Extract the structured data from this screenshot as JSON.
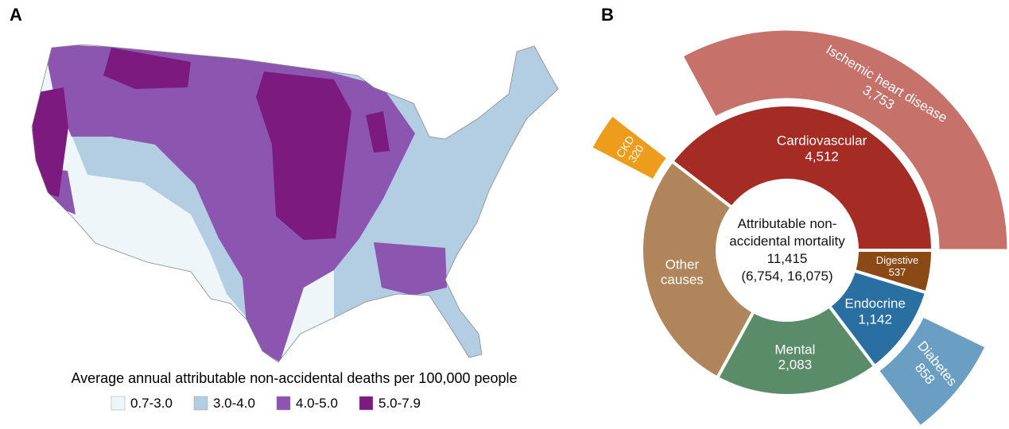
{
  "chart_data": [
    {
      "type": "map",
      "panel": "A",
      "title": "Average annual attributable non-accidental deaths per 100,000 people",
      "legend": [
        {
          "label": "0.7-3.0",
          "color": "#eef6fa"
        },
        {
          "label": "3.0-4.0",
          "color": "#b3cde3"
        },
        {
          "label": "4.0-5.0",
          "color": "#8c56b0"
        },
        {
          "label": "5.0-7.9",
          "color": "#7d1a7f"
        }
      ]
    },
    {
      "type": "sunburst",
      "panel": "B",
      "center": {
        "title": "Attributable non-accidental mortality",
        "value": 11415,
        "value_label": "11,415",
        "interval": "(6,754, 16,075)"
      },
      "inner": [
        {
          "name": "Cardiovascular",
          "value": 4512,
          "value_label": "4,512",
          "color": "#a52c24",
          "children": [
            {
              "name": "Ischemic heart disease",
              "value": 3753,
              "value_label": "3,753",
              "color": "#c6716a"
            }
          ]
        },
        {
          "name": "Other causes",
          "value": 3141,
          "color": "#b1855b",
          "children": [
            {
              "name": "CKD",
              "value": 320,
              "value_label": "320",
              "color": "#ee9c1c"
            }
          ]
        },
        {
          "name": "Mental",
          "value": 2083,
          "value_label": "2,083",
          "color": "#5a8c69",
          "children": []
        },
        {
          "name": "Endocrine",
          "value": 1142,
          "value_label": "1,142",
          "color": "#2a6fa2",
          "children": [
            {
              "name": "Diabetes",
              "value": 858,
              "value_label": "858",
              "color": "#6a9ec2"
            }
          ]
        },
        {
          "name": "Digestive",
          "value": 537,
          "value_label": "537",
          "color": "#8b4916",
          "children": []
        }
      ]
    }
  ]
}
